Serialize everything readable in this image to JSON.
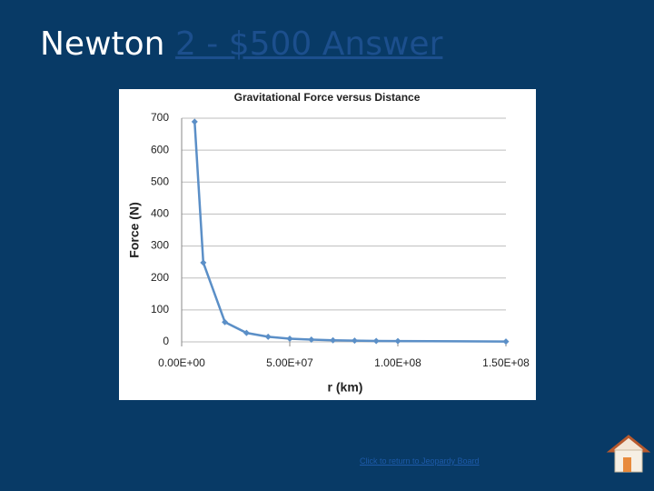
{
  "header": {
    "title": "Newton",
    "link": "2 - $500 Answer"
  },
  "footer": {
    "link": "Click to return to Jeopardy Board"
  },
  "chart_data": {
    "type": "line",
    "title": "Gravitational Force versus Distance",
    "x_label": "r (km)",
    "y_label": "Force (N)",
    "x": [
      6000000,
      10000000,
      20000000,
      30000000,
      40000000,
      50000000,
      60000000,
      70000000,
      80000000,
      90000000,
      100000000,
      150000000
    ],
    "series": [
      {
        "color": "#5b8fc7",
        "values": [
          689,
          248,
          62,
          28,
          16,
          10,
          7,
          5,
          4,
          3,
          2.5,
          1.1
        ]
      }
    ],
    "xlim": [
      0,
      150000000
    ],
    "xticks": [
      {
        "value": 0,
        "label": "0.00E+00"
      },
      {
        "value": 50000000,
        "label": "5.00E+07"
      },
      {
        "value": 100000000,
        "label": "1.00E+08"
      },
      {
        "value": 150000000,
        "label": "1.50E+08"
      }
    ],
    "ylim": [
      0,
      700
    ],
    "yticks": [
      0,
      100,
      200,
      300,
      400,
      500,
      600,
      700
    ],
    "grid": true
  }
}
